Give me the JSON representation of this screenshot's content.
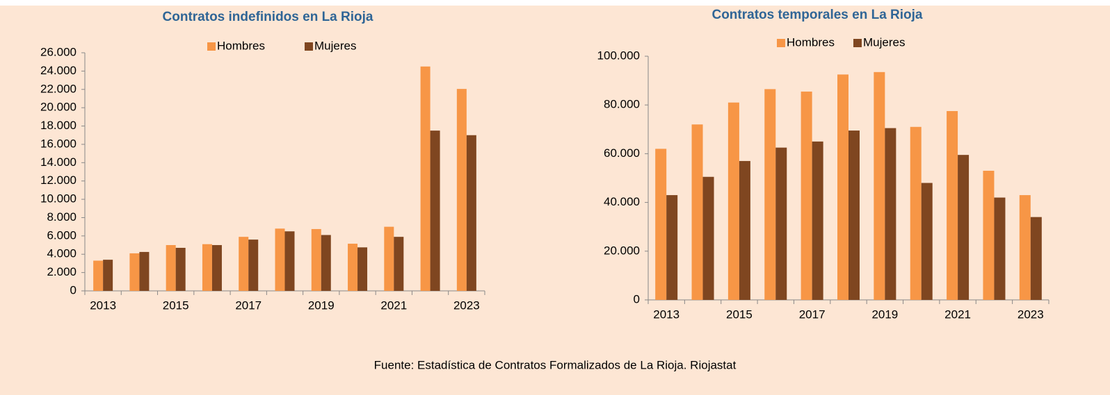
{
  "chart_data": [
    {
      "type": "bar",
      "title": "Contratos indefinidos en La Rioja",
      "categories": [
        "2013",
        null,
        "2015",
        null,
        "2017",
        null,
        "2019",
        null,
        "2021",
        null,
        "2023"
      ],
      "series": [
        {
          "name": "Hombres",
          "color": "#f79646",
          "values": [
            3300,
            4100,
            5000,
            5100,
            5900,
            6800,
            6750,
            5150,
            7000,
            24500,
            22050
          ]
        },
        {
          "name": "Mujeres",
          "color": "#7f4620",
          "values": [
            3400,
            4250,
            4700,
            5000,
            5600,
            6500,
            6100,
            4750,
            5900,
            17500,
            17000
          ]
        }
      ],
      "ylim": [
        0,
        26000
      ],
      "yticks": [
        0,
        {
          "value": 2000,
          "label": "2.000"
        },
        {
          "value": 4000,
          "label": "4.000"
        },
        {
          "value": 6000,
          "label": "6.000"
        },
        {
          "value": 8000,
          "label": "8.000"
        },
        {
          "value": 10000,
          "label": "10.000"
        },
        {
          "value": 12000,
          "label": "12.000"
        },
        {
          "value": 14000,
          "label": "14.000"
        },
        {
          "value": 16000,
          "label": "16.000"
        },
        {
          "value": 18000,
          "label": "18.000"
        },
        {
          "value": 20000,
          "label": "20.000"
        },
        {
          "value": 22000,
          "label": "22.000"
        },
        {
          "value": 24000,
          "label": "24.000"
        },
        {
          "value": 26000,
          "label": "26.000"
        }
      ],
      "grid": false,
      "legend": "top"
    },
    {
      "type": "bar",
      "title": "Contratos temporales en La Rioja",
      "categories": [
        "2013",
        null,
        "2015",
        null,
        "2017",
        null,
        "2019",
        null,
        "2021",
        null,
        "2023"
      ],
      "series": [
        {
          "name": "Hombres",
          "color": "#f79646",
          "values": [
            62000,
            72000,
            81000,
            86500,
            85500,
            92500,
            93500,
            71000,
            77500,
            53000,
            43000
          ]
        },
        {
          "name": "Mujeres",
          "color": "#7f4620",
          "values": [
            43000,
            50500,
            57000,
            62500,
            65000,
            69500,
            70500,
            48000,
            59500,
            42000,
            34000
          ]
        }
      ],
      "ylim": [
        0,
        100000
      ],
      "yticks": [
        0,
        {
          "value": 20000,
          "label": "20.000"
        },
        {
          "value": 40000,
          "label": "40.000"
        },
        {
          "value": 60000,
          "label": "60.000"
        },
        {
          "value": 80000,
          "label": "80.000"
        },
        {
          "value": 100000,
          "label": "100.000"
        }
      ],
      "grid": false,
      "legend": "top"
    }
  ],
  "footer": "Fuente: Estadística de Contratos Formalizados de La Rioja. Riojastat"
}
